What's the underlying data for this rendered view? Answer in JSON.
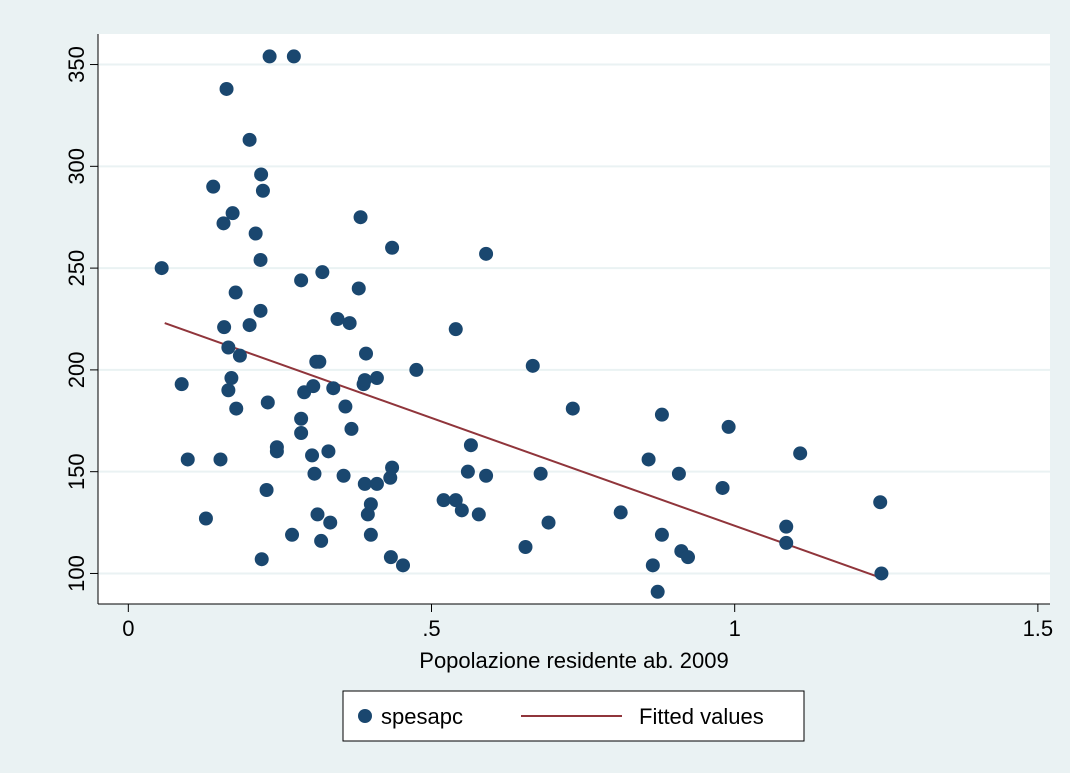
{
  "chart_data": {
    "type": "scatter",
    "title": "",
    "xlabel": "Popolazione residente ab. 2009",
    "ylabel": "",
    "xlim": [
      -0.05,
      1.52
    ],
    "ylim": [
      85,
      365
    ],
    "xticks": [
      0,
      0.5,
      1,
      1.5
    ],
    "xtick_labels": [
      "0",
      ".5",
      "1",
      "1.5"
    ],
    "yticks": [
      100,
      150,
      200,
      250,
      300,
      350
    ],
    "ytick_labels": [
      "100",
      "150",
      "200",
      "250",
      "300",
      "350"
    ],
    "grid": true,
    "legend_position": "bottom",
    "colors": {
      "page_background": "#EAF2F3",
      "plot_background": "#FFFFFF",
      "grid": "#EAF2F3",
      "points": "#1A476F",
      "fit_line": "#90353B"
    },
    "series": [
      {
        "name": "spesapc",
        "kind": "scatter",
        "points": [
          [
            0.055,
            250
          ],
          [
            0.088,
            193
          ],
          [
            0.098,
            156
          ],
          [
            0.128,
            127
          ],
          [
            0.14,
            290
          ],
          [
            0.152,
            156
          ],
          [
            0.157,
            272
          ],
          [
            0.158,
            221
          ],
          [
            0.162,
            338
          ],
          [
            0.165,
            211
          ],
          [
            0.165,
            190
          ],
          [
            0.17,
            196
          ],
          [
            0.172,
            277
          ],
          [
            0.177,
            238
          ],
          [
            0.178,
            181
          ],
          [
            0.184,
            207
          ],
          [
            0.2,
            313
          ],
          [
            0.2,
            222
          ],
          [
            0.21,
            267
          ],
          [
            0.218,
            254
          ],
          [
            0.218,
            229
          ],
          [
            0.219,
            296
          ],
          [
            0.22,
            107
          ],
          [
            0.222,
            288
          ],
          [
            0.228,
            141
          ],
          [
            0.23,
            184
          ],
          [
            0.233,
            354
          ],
          [
            0.245,
            162
          ],
          [
            0.245,
            160
          ],
          [
            0.27,
            119
          ],
          [
            0.273,
            354
          ],
          [
            0.285,
            244
          ],
          [
            0.285,
            176
          ],
          [
            0.285,
            169
          ],
          [
            0.29,
            189
          ],
          [
            0.303,
            158
          ],
          [
            0.305,
            192
          ],
          [
            0.307,
            149
          ],
          [
            0.31,
            204
          ],
          [
            0.312,
            129
          ],
          [
            0.315,
            204
          ],
          [
            0.318,
            116
          ],
          [
            0.32,
            248
          ],
          [
            0.33,
            160
          ],
          [
            0.333,
            125
          ],
          [
            0.338,
            191
          ],
          [
            0.345,
            225
          ],
          [
            0.355,
            148
          ],
          [
            0.358,
            182
          ],
          [
            0.365,
            223
          ],
          [
            0.368,
            171
          ],
          [
            0.38,
            240
          ],
          [
            0.383,
            275
          ],
          [
            0.388,
            193
          ],
          [
            0.39,
            195
          ],
          [
            0.39,
            144
          ],
          [
            0.392,
            208
          ],
          [
            0.395,
            129
          ],
          [
            0.4,
            134
          ],
          [
            0.4,
            119
          ],
          [
            0.41,
            196
          ],
          [
            0.41,
            144
          ],
          [
            0.432,
            147
          ],
          [
            0.433,
            108
          ],
          [
            0.435,
            152
          ],
          [
            0.435,
            260
          ],
          [
            0.453,
            104
          ],
          [
            0.475,
            200
          ],
          [
            0.52,
            136
          ],
          [
            0.54,
            220
          ],
          [
            0.54,
            136
          ],
          [
            0.55,
            131
          ],
          [
            0.56,
            150
          ],
          [
            0.565,
            163
          ],
          [
            0.578,
            129
          ],
          [
            0.59,
            148
          ],
          [
            0.59,
            257
          ],
          [
            0.655,
            113
          ],
          [
            0.667,
            202
          ],
          [
            0.68,
            149
          ],
          [
            0.693,
            125
          ],
          [
            0.733,
            181
          ],
          [
            0.812,
            130
          ],
          [
            0.858,
            156
          ],
          [
            0.865,
            104
          ],
          [
            0.873,
            91
          ],
          [
            0.88,
            178
          ],
          [
            0.88,
            119
          ],
          [
            0.908,
            149
          ],
          [
            0.912,
            111
          ],
          [
            0.923,
            108
          ],
          [
            0.98,
            142
          ],
          [
            0.99,
            172
          ],
          [
            1.085,
            123
          ],
          [
            1.085,
            115
          ],
          [
            1.108,
            159
          ],
          [
            1.24,
            135
          ],
          [
            1.242,
            100
          ]
        ]
      },
      {
        "name": "Fitted values",
        "kind": "line",
        "points": [
          [
            0.06,
            223
          ],
          [
            1.24,
            98
          ]
        ]
      }
    ]
  }
}
